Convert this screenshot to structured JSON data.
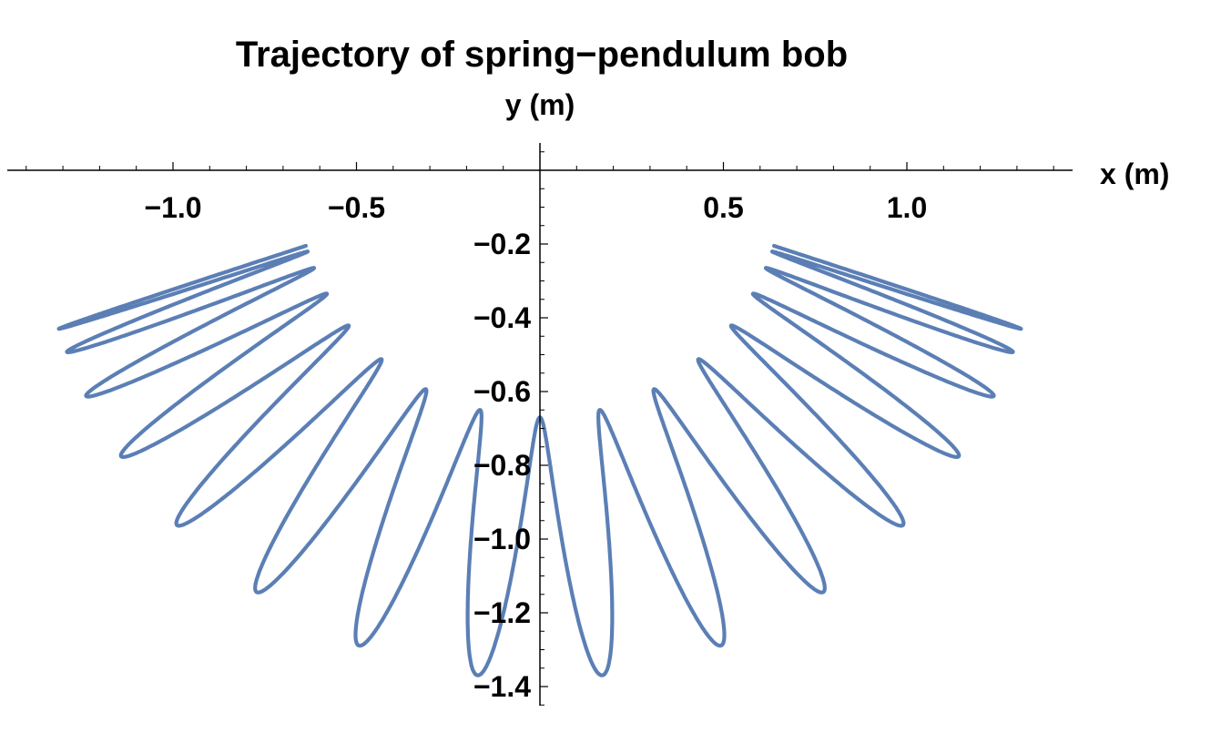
{
  "chart_data": {
    "type": "line",
    "title": "Trajectory of spring−pendulum bob",
    "xlabel": "x (m)",
    "ylabel": "y (m)",
    "xlim": [
      -1.45,
      1.45
    ],
    "ylim": [
      -1.45,
      0.07
    ],
    "x_ticks": [
      {
        "value": -1.0,
        "label": "−1.0"
      },
      {
        "value": -0.5,
        "label": "−0.5"
      },
      {
        "value": 0.5,
        "label": "0.5"
      },
      {
        "value": 1.0,
        "label": "1.0"
      }
    ],
    "y_ticks": [
      {
        "value": -0.2,
        "label": "−0.2"
      },
      {
        "value": -0.4,
        "label": "−0.4"
      },
      {
        "value": -0.6,
        "label": "−0.6"
      },
      {
        "value": -0.8,
        "label": "−0.8"
      },
      {
        "value": -1.0,
        "label": "−1.0"
      },
      {
        "value": -1.2,
        "label": "−1.2"
      },
      {
        "value": -1.4,
        "label": "−1.4"
      }
    ],
    "grid": false,
    "series": [
      {
        "color": "#5b7fb5",
        "trajectory": {
          "pendulum_amplitude_rad": 1.26,
          "pendulum_cycles": 2,
          "spring_oscillations_per_swing": 32,
          "min_radius_m": 0.67,
          "max_radius_m": 1.38,
          "extreme_points": [
            {
              "x": -1.31,
              "y": -0.38
            },
            {
              "x": -0.61,
              "y": -0.19
            },
            {
              "x": 0.61,
              "y": -0.19
            },
            {
              "x": 1.31,
              "y": -0.38
            },
            {
              "x": 0.0,
              "y": -0.67
            },
            {
              "x": 0.0,
              "y": -1.38
            }
          ]
        }
      }
    ]
  }
}
